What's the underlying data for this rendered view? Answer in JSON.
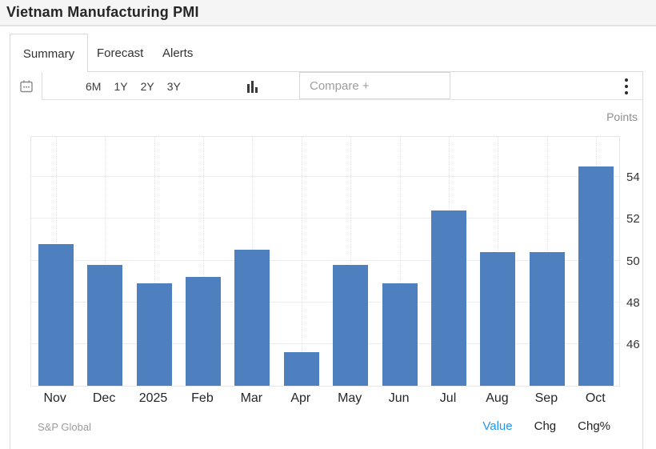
{
  "title": "Vietnam Manufacturing PMI",
  "tabs": [
    {
      "label": "Summary",
      "active": true
    },
    {
      "label": "Forecast",
      "active": false
    },
    {
      "label": "Alerts",
      "active": false
    }
  ],
  "toolbar": {
    "ranges": [
      "6M",
      "1Y",
      "2Y",
      "3Y"
    ],
    "compare_placeholder": "Compare +",
    "icons": [
      "calendar-icon",
      "bar-chart-type-icon",
      "kebab-menu-icon"
    ]
  },
  "chart_data": {
    "type": "bar",
    "title": "Vietnam Manufacturing PMI",
    "unit_label": "Points",
    "categories": [
      "Nov",
      "Dec",
      "2025",
      "Feb",
      "Mar",
      "Apr",
      "May",
      "Jun",
      "Jul",
      "Aug",
      "Sep",
      "Oct"
    ],
    "values": [
      50.8,
      49.8,
      48.9,
      49.2,
      50.5,
      45.6,
      49.8,
      48.9,
      52.4,
      50.4,
      50.4,
      54.5
    ],
    "ylim": [
      44,
      56
    ],
    "yticks": [
      46,
      48,
      50,
      52,
      54
    ],
    "xlabel": "",
    "ylabel": "Points",
    "grid": true,
    "legend_position": "none",
    "bar_color": "#4e7fbe"
  },
  "footer": {
    "source": "S&P Global",
    "links": [
      {
        "label": "Value",
        "active": true
      },
      {
        "label": "Chg",
        "active": false
      },
      {
        "label": "Chg%",
        "active": false
      }
    ]
  },
  "colors": {
    "bar_blue": "#4e7fbe",
    "link_blue": "#2196f3",
    "titlebar_bg": "#f5f5f5",
    "border_gray": "#d9d9d9"
  }
}
